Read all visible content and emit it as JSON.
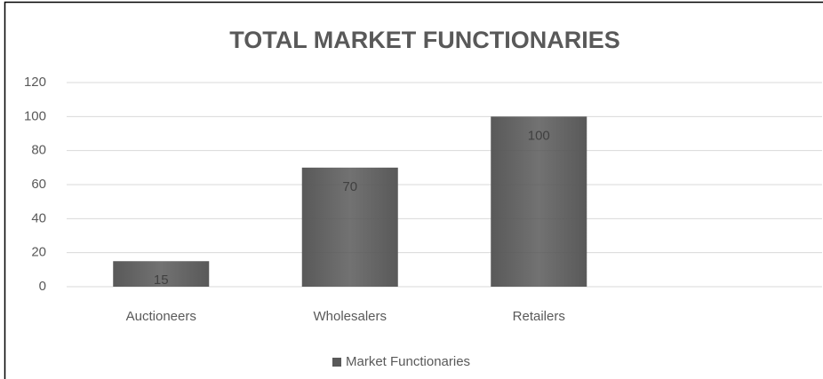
{
  "chart_data": {
    "type": "bar",
    "title": "TOTAL MARKET FUNCTIONARIES",
    "categories": [
      "Auctioneers",
      "Wholesalers",
      "Retailers",
      null
    ],
    "series": [
      {
        "name": "Market Functionaries",
        "color": "#595959",
        "values": [
          15,
          70,
          100,
          null
        ]
      }
    ],
    "ylim": [
      0,
      120
    ],
    "yticks": [
      0,
      20,
      40,
      60,
      80,
      100,
      120
    ],
    "grid": true,
    "legend": "bottom"
  }
}
